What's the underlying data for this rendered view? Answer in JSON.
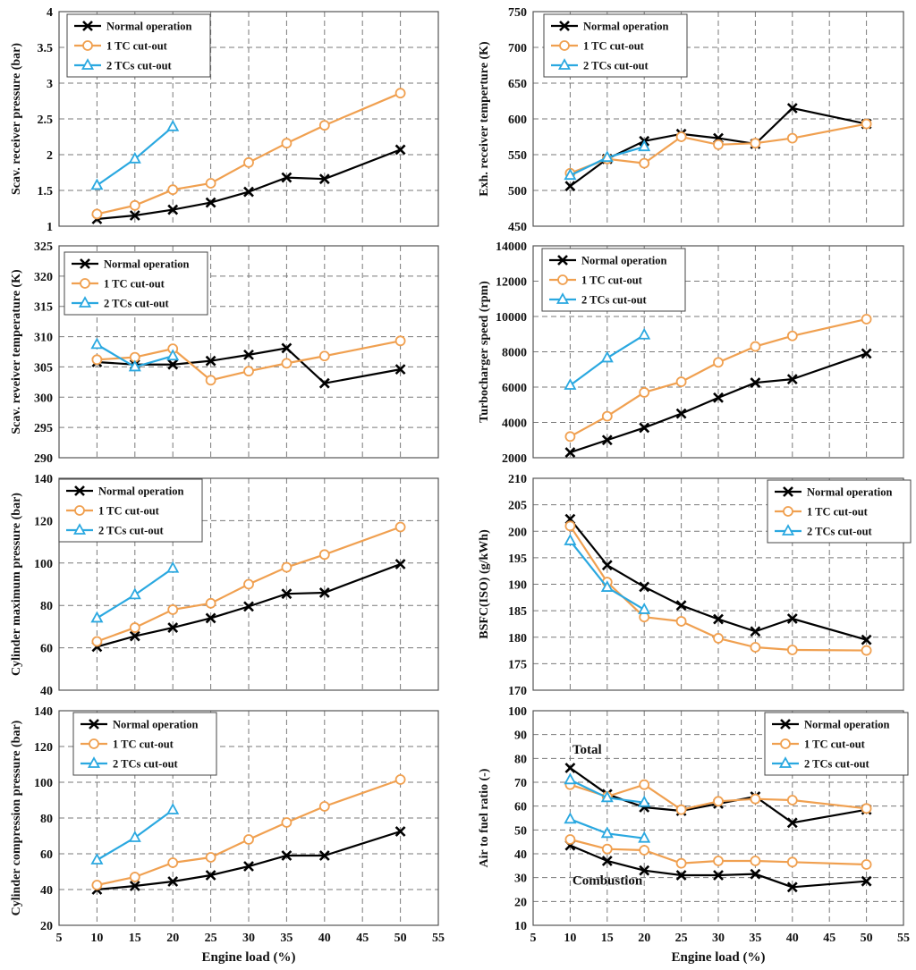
{
  "colors": {
    "normal": "#000000",
    "tc1": "#f0a050",
    "tc2": "#2aa8e0",
    "grid": "#7a7a7a"
  },
  "legend_labels": [
    "Normal operation",
    "1 TC cut-out",
    "2 TCs cut-out"
  ],
  "chart_data": [
    {
      "id": "scav-pressure",
      "type": "line",
      "xlabel": "",
      "ylabel": "Scav. receiver pressure (bar)",
      "xlim": [
        5,
        55
      ],
      "ylim": [
        1,
        4
      ],
      "yticks": [
        1,
        1.5,
        2,
        2.5,
        3,
        3.5,
        4
      ],
      "xticks": [],
      "legend_position": "top-left",
      "series": [
        {
          "name": "Normal operation",
          "x": [
            10,
            15,
            20,
            25,
            30,
            35,
            40,
            50
          ],
          "y": [
            1.1,
            1.15,
            1.23,
            1.33,
            1.48,
            1.68,
            1.66,
            2.07
          ]
        },
        {
          "name": "1 TC cut-out",
          "x": [
            10,
            15,
            20,
            25,
            30,
            35,
            40,
            50
          ],
          "y": [
            1.17,
            1.29,
            1.51,
            1.6,
            1.89,
            2.16,
            2.41,
            2.86
          ]
        },
        {
          "name": "2 TCs cut-out",
          "x": [
            10,
            15,
            20
          ],
          "y": [
            1.57,
            1.94,
            2.39
          ]
        }
      ]
    },
    {
      "id": "exh-temperature",
      "type": "line",
      "xlabel": "",
      "ylabel": "Exh. receiver temperture (K)",
      "xlim": [
        5,
        55
      ],
      "ylim": [
        450,
        750
      ],
      "yticks": [
        450,
        500,
        550,
        600,
        650,
        700,
        750
      ],
      "xticks": [],
      "legend_position": "top-left",
      "series": [
        {
          "name": "Normal operation",
          "x": [
            10,
            15,
            20,
            25,
            30,
            35,
            40,
            50
          ],
          "y": [
            506,
            544,
            569,
            579,
            573,
            565,
            615,
            593
          ]
        },
        {
          "name": "1 TC cut-out",
          "x": [
            10,
            15,
            20,
            25,
            30,
            35,
            40,
            50
          ],
          "y": [
            524,
            544,
            538,
            575,
            564,
            566,
            573,
            593
          ]
        },
        {
          "name": "2 TCs cut-out",
          "x": [
            10,
            15,
            20
          ],
          "y": [
            521,
            546,
            561
          ]
        }
      ]
    },
    {
      "id": "scav-temperature",
      "type": "line",
      "xlabel": "",
      "ylabel": "Scav. reveiver temperature (K)",
      "xlim": [
        5,
        55
      ],
      "ylim": [
        290,
        325
      ],
      "yticks": [
        290,
        295,
        300,
        305,
        310,
        315,
        320,
        325
      ],
      "xticks": [],
      "legend_position": "top-left",
      "series": [
        {
          "name": "Normal operation",
          "x": [
            10,
            15,
            20,
            25,
            30,
            35,
            40,
            50
          ],
          "y": [
            305.8,
            305.4,
            305.4,
            306,
            307,
            308.1,
            302.3,
            304.6
          ]
        },
        {
          "name": "1 TC cut-out",
          "x": [
            10,
            15,
            20,
            25,
            30,
            35,
            40,
            50
          ],
          "y": [
            306.2,
            306.6,
            308,
            302.8,
            304.3,
            305.6,
            306.8,
            309.3
          ]
        },
        {
          "name": "2 TCs cut-out",
          "x": [
            10,
            15,
            20
          ],
          "y": [
            308.7,
            305,
            306.8
          ]
        }
      ]
    },
    {
      "id": "tc-speed",
      "type": "line",
      "xlabel": "",
      "ylabel": "Turbocharger speed (rpm)",
      "xlim": [
        5,
        55
      ],
      "ylim": [
        2000,
        14000
      ],
      "yticks": [
        2000,
        4000,
        6000,
        8000,
        10000,
        12000,
        14000
      ],
      "xticks": [],
      "legend_position": "top-left",
      "series": [
        {
          "name": "Normal operation",
          "x": [
            10,
            15,
            20,
            25,
            30,
            35,
            40,
            50
          ],
          "y": [
            2300,
            3000,
            3700,
            4500,
            5400,
            6250,
            6450,
            7900
          ]
        },
        {
          "name": "1 TC cut-out",
          "x": [
            10,
            15,
            20,
            25,
            30,
            35,
            40,
            50
          ],
          "y": [
            3200,
            4350,
            5700,
            6300,
            7400,
            8300,
            8900,
            9850
          ]
        },
        {
          "name": "2 TCs cut-out",
          "x": [
            10,
            15,
            20
          ],
          "y": [
            6100,
            7650,
            8950
          ]
        }
      ]
    },
    {
      "id": "cyl-max-pressure",
      "type": "line",
      "xlabel": "",
      "ylabel": "Cylinder maximum pressure (bar)",
      "xlim": [
        5,
        55
      ],
      "ylim": [
        40,
        140
      ],
      "yticks": [
        40,
        60,
        80,
        100,
        120,
        140
      ],
      "xticks": [],
      "legend_position": "top-left",
      "series": [
        {
          "name": "Normal operation",
          "x": [
            10,
            15,
            20,
            25,
            30,
            35,
            40,
            50
          ],
          "y": [
            60.5,
            65.5,
            69.5,
            74,
            79.5,
            85.5,
            86,
            99.5
          ]
        },
        {
          "name": "1 TC cut-out",
          "x": [
            10,
            15,
            20,
            25,
            30,
            35,
            40,
            50
          ],
          "y": [
            63,
            69.5,
            78,
            81,
            90,
            98,
            104,
            117
          ]
        },
        {
          "name": "2 TCs cut-out",
          "x": [
            10,
            15,
            20
          ],
          "y": [
            74,
            85,
            97.5
          ]
        }
      ]
    },
    {
      "id": "bsfc",
      "type": "line",
      "xlabel": "",
      "ylabel": "BSFC(ISO) (g/kWh)",
      "xlim": [
        5,
        55
      ],
      "ylim": [
        170,
        210
      ],
      "yticks": [
        170,
        175,
        180,
        185,
        190,
        195,
        200,
        205,
        210
      ],
      "xticks": [],
      "legend_position": "top-right",
      "series": [
        {
          "name": "Normal operation",
          "x": [
            10,
            15,
            20,
            25,
            30,
            35,
            40,
            50
          ],
          "y": [
            202.3,
            193.6,
            189.5,
            186,
            183.4,
            181.1,
            183.5,
            179.5
          ]
        },
        {
          "name": "1 TC cut-out",
          "x": [
            10,
            15,
            20,
            25,
            30,
            35,
            40,
            50
          ],
          "y": [
            201,
            190.4,
            183.8,
            183,
            179.8,
            178.1,
            177.6,
            177.5
          ]
        },
        {
          "name": "2 TCs cut-out",
          "x": [
            10,
            15,
            20
          ],
          "y": [
            198.2,
            189.4,
            185.2
          ]
        }
      ]
    },
    {
      "id": "cyl-compression-pressure",
      "type": "line",
      "xlabel": "Engine load (%)",
      "ylabel": "Cylinder compression pressure (bar)",
      "xlim": [
        5,
        55
      ],
      "ylim": [
        20,
        140
      ],
      "yticks": [
        20,
        40,
        60,
        80,
        100,
        120,
        140
      ],
      "xticks": [
        5,
        10,
        15,
        20,
        25,
        30,
        35,
        40,
        45,
        50,
        55
      ],
      "legend_position": "top-left",
      "series": [
        {
          "name": "Normal operation",
          "x": [
            10,
            15,
            20,
            25,
            30,
            35,
            40,
            50
          ],
          "y": [
            40,
            42,
            44.5,
            48,
            53,
            59,
            59,
            72.5
          ]
        },
        {
          "name": "1 TC cut-out",
          "x": [
            10,
            15,
            20,
            25,
            30,
            35,
            40,
            50
          ],
          "y": [
            42.5,
            47,
            55,
            58,
            68,
            77.5,
            86.5,
            101.5
          ]
        },
        {
          "name": "2 TCs cut-out",
          "x": [
            10,
            15,
            20
          ],
          "y": [
            56.5,
            69,
            84.5
          ]
        }
      ]
    },
    {
      "id": "air-fuel-ratio",
      "type": "line",
      "xlabel": "Engine load (%)",
      "ylabel": "Air to fuel ratio (-)",
      "xlim": [
        5,
        55
      ],
      "ylim": [
        10,
        100
      ],
      "yticks": [
        10,
        20,
        30,
        40,
        50,
        60,
        70,
        80,
        90,
        100
      ],
      "xticks": [
        5,
        10,
        15,
        20,
        25,
        30,
        35,
        40,
        45,
        50,
        55
      ],
      "legend_position": "top-right",
      "annotations": [
        {
          "text": "Total",
          "x": 10.3,
          "y": 82
        },
        {
          "text": "Combustion",
          "x": 10.3,
          "y": 27
        }
      ],
      "series": [
        {
          "name": "Normal operation",
          "group": "Total",
          "x": [
            10,
            15,
            20,
            25,
            30,
            35,
            40,
            50
          ],
          "y": [
            76,
            65,
            59.5,
            58,
            61,
            64,
            53,
            58.5
          ]
        },
        {
          "name": "1 TC cut-out",
          "group": "Total",
          "x": [
            10,
            15,
            20,
            25,
            30,
            35,
            40,
            50
          ],
          "y": [
            69,
            64,
            69,
            58.5,
            62,
            63,
            62.5,
            59
          ]
        },
        {
          "name": "2 TCs cut-out",
          "group": "Total",
          "x": [
            10,
            15,
            20
          ],
          "y": [
            71,
            63.5,
            61.5
          ]
        },
        {
          "name": "Normal operation",
          "group": "Combustion",
          "x": [
            10,
            15,
            20,
            25,
            30,
            35,
            40,
            50
          ],
          "y": [
            43.5,
            37,
            33,
            31,
            31,
            31.5,
            26,
            28.5
          ]
        },
        {
          "name": "1 TC cut-out",
          "group": "Combustion",
          "x": [
            10,
            15,
            20,
            25,
            30,
            35,
            40,
            50
          ],
          "y": [
            46,
            42,
            41.5,
            36,
            37,
            37,
            36.5,
            35.5
          ]
        },
        {
          "name": "2 TCs cut-out",
          "group": "Combustion",
          "x": [
            10,
            15,
            20
          ],
          "y": [
            54.5,
            48.5,
            46.5
          ]
        }
      ]
    }
  ]
}
